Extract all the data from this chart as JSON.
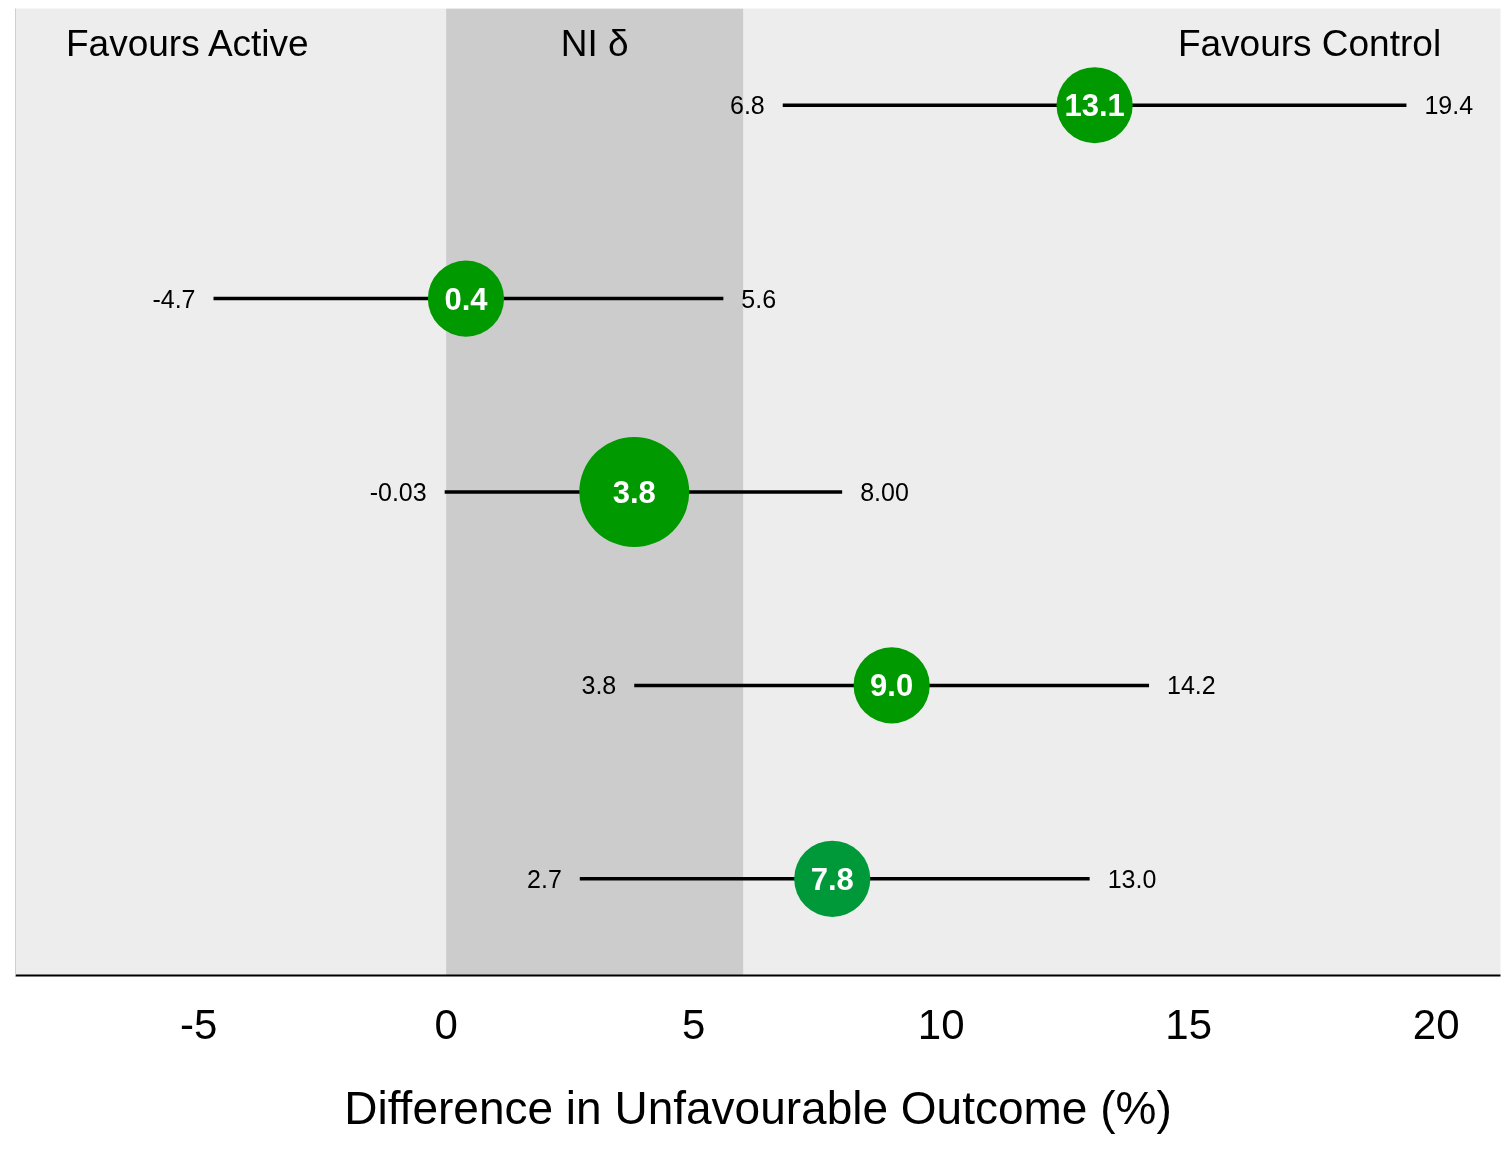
{
  "chart_data": {
    "type": "bubble",
    "orientation": "horizontal",
    "categories": [
      null,
      null,
      null,
      null,
      null
    ],
    "values": [
      13.1,
      0.4,
      3.8,
      9.0,
      7.8
    ],
    "errors": [
      [
        6.8,
        19.4
      ],
      [
        -4.7,
        5.6
      ],
      [
        -0.03,
        8.0
      ],
      [
        3.8,
        14.2
      ],
      [
        2.7,
        13.0
      ]
    ],
    "sizes": [
      0.48,
      0.48,
      1,
      0.48,
      0.48
    ],
    "colors": [
      "#009900",
      "#009900",
      "#009900",
      "#009900",
      "#00993a"
    ],
    "value_labels": [
      "13.1",
      "0.4",
      "3.8",
      "9.0",
      "7.8"
    ],
    "marker": "circle",
    "xlabel": "Difference in Unfavourable Outcome (%)",
    "xlim": [
      -8.7,
      21.3
    ],
    "xticks": [
      -5,
      0,
      5,
      10,
      15,
      20
    ],
    "bands": [
      {
        "axis": "x",
        "from": 0,
        "to": 6,
        "label": "NI δ",
        "color": "#cccccc"
      }
    ],
    "annotations": [
      "Favours Active",
      "Favours Control",
      {
        "text": "6.8",
        "x": 6.8
      },
      {
        "text": "19.4",
        "x": 19.4
      },
      {
        "text": "-4.7",
        "x": -4.7
      },
      {
        "text": "5.6",
        "x": 5.6
      },
      {
        "text": "-0.03",
        "x": -0.03
      },
      {
        "text": "8.00",
        "x": 8.0
      },
      {
        "text": "3.8",
        "x": 3.8
      },
      {
        "text": "14.2",
        "x": 14.2
      },
      {
        "text": "2.7",
        "x": 2.7
      },
      {
        "text": "13.0",
        "x": 13.0
      }
    ],
    "grid": false,
    "tick_labels": "x"
  }
}
